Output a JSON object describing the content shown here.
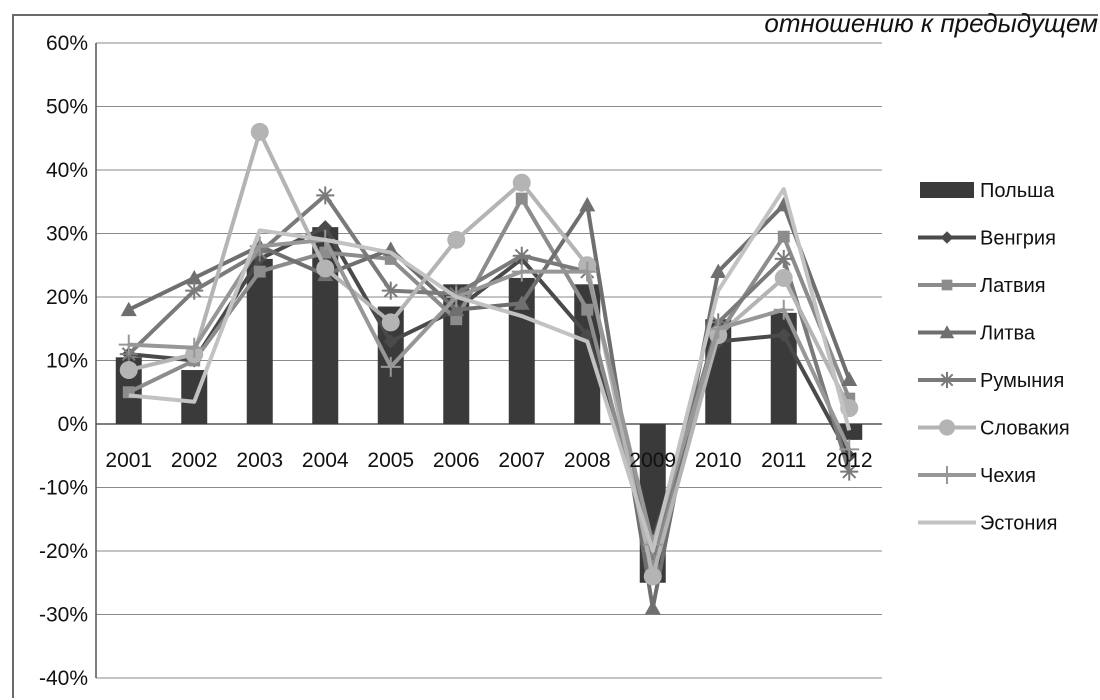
{
  "chart_data": {
    "type": "bar+line",
    "title": "отношению к предыдущем",
    "categories": [
      "2001",
      "2002",
      "2003",
      "2004",
      "2005",
      "2006",
      "2007",
      "2008",
      "2009",
      "2010",
      "2011",
      "2012"
    ],
    "ylim": [
      -40,
      60
    ],
    "yticks": [
      -40,
      -30,
      -20,
      -10,
      0,
      10,
      20,
      30,
      40,
      50,
      60
    ],
    "ytick_labels": [
      "-40%",
      "-30%",
      "-20%",
      "-10%",
      "0%",
      "10%",
      "20%",
      "30%",
      "40%",
      "50%",
      "60%"
    ],
    "grid": true,
    "legend_position": "right",
    "series": [
      {
        "name": "Польша",
        "kind": "bar",
        "color": "#3a3a3a",
        "marker": "none",
        "values": [
          10.5,
          8.5,
          26,
          31,
          18.5,
          22,
          23,
          22,
          -25,
          16.5,
          17.5,
          -2.5
        ]
      },
      {
        "name": "Венгрия",
        "kind": "line",
        "color": "#4a4a4a",
        "marker": "diamond",
        "values": [
          11,
          10,
          26,
          31,
          13,
          18,
          26,
          14,
          -18,
          13,
          14,
          -5
        ]
      },
      {
        "name": "Латвия",
        "kind": "line",
        "color": "#8c8c8c",
        "marker": "square",
        "values": [
          5,
          10,
          24,
          27,
          26,
          16.5,
          35.5,
          18,
          -22,
          14,
          29.5,
          4
        ]
      },
      {
        "name": "Литва",
        "kind": "line",
        "color": "#6f6f6f",
        "marker": "triangle",
        "values": [
          18,
          23,
          28,
          23.5,
          27.5,
          18,
          19,
          34.5,
          -29,
          24,
          34.5,
          7
        ]
      },
      {
        "name": "Румыния",
        "kind": "line",
        "color": "#7a7a7a",
        "marker": "star",
        "values": [
          11,
          21,
          27,
          36,
          21,
          20.5,
          26.5,
          24,
          -20,
          16,
          26,
          -7.5
        ]
      },
      {
        "name": "Словакия",
        "kind": "line",
        "color": "#b4b4b4",
        "marker": "circle",
        "values": [
          8.5,
          11,
          46,
          24.5,
          16,
          29,
          38,
          25,
          -24,
          14,
          23,
          2.5
        ]
      },
      {
        "name": "Чехия",
        "kind": "line",
        "color": "#979797",
        "marker": "plus",
        "values": [
          12.5,
          12,
          28,
          29,
          9,
          20,
          24,
          24,
          -19,
          15,
          18,
          -4
        ]
      },
      {
        "name": "Эстония",
        "kind": "line",
        "color": "#c2c2c2",
        "marker": "none",
        "values": [
          4.5,
          3.5,
          30.5,
          29,
          27,
          20,
          17,
          13,
          -20,
          21,
          37,
          -1
        ]
      }
    ]
  }
}
